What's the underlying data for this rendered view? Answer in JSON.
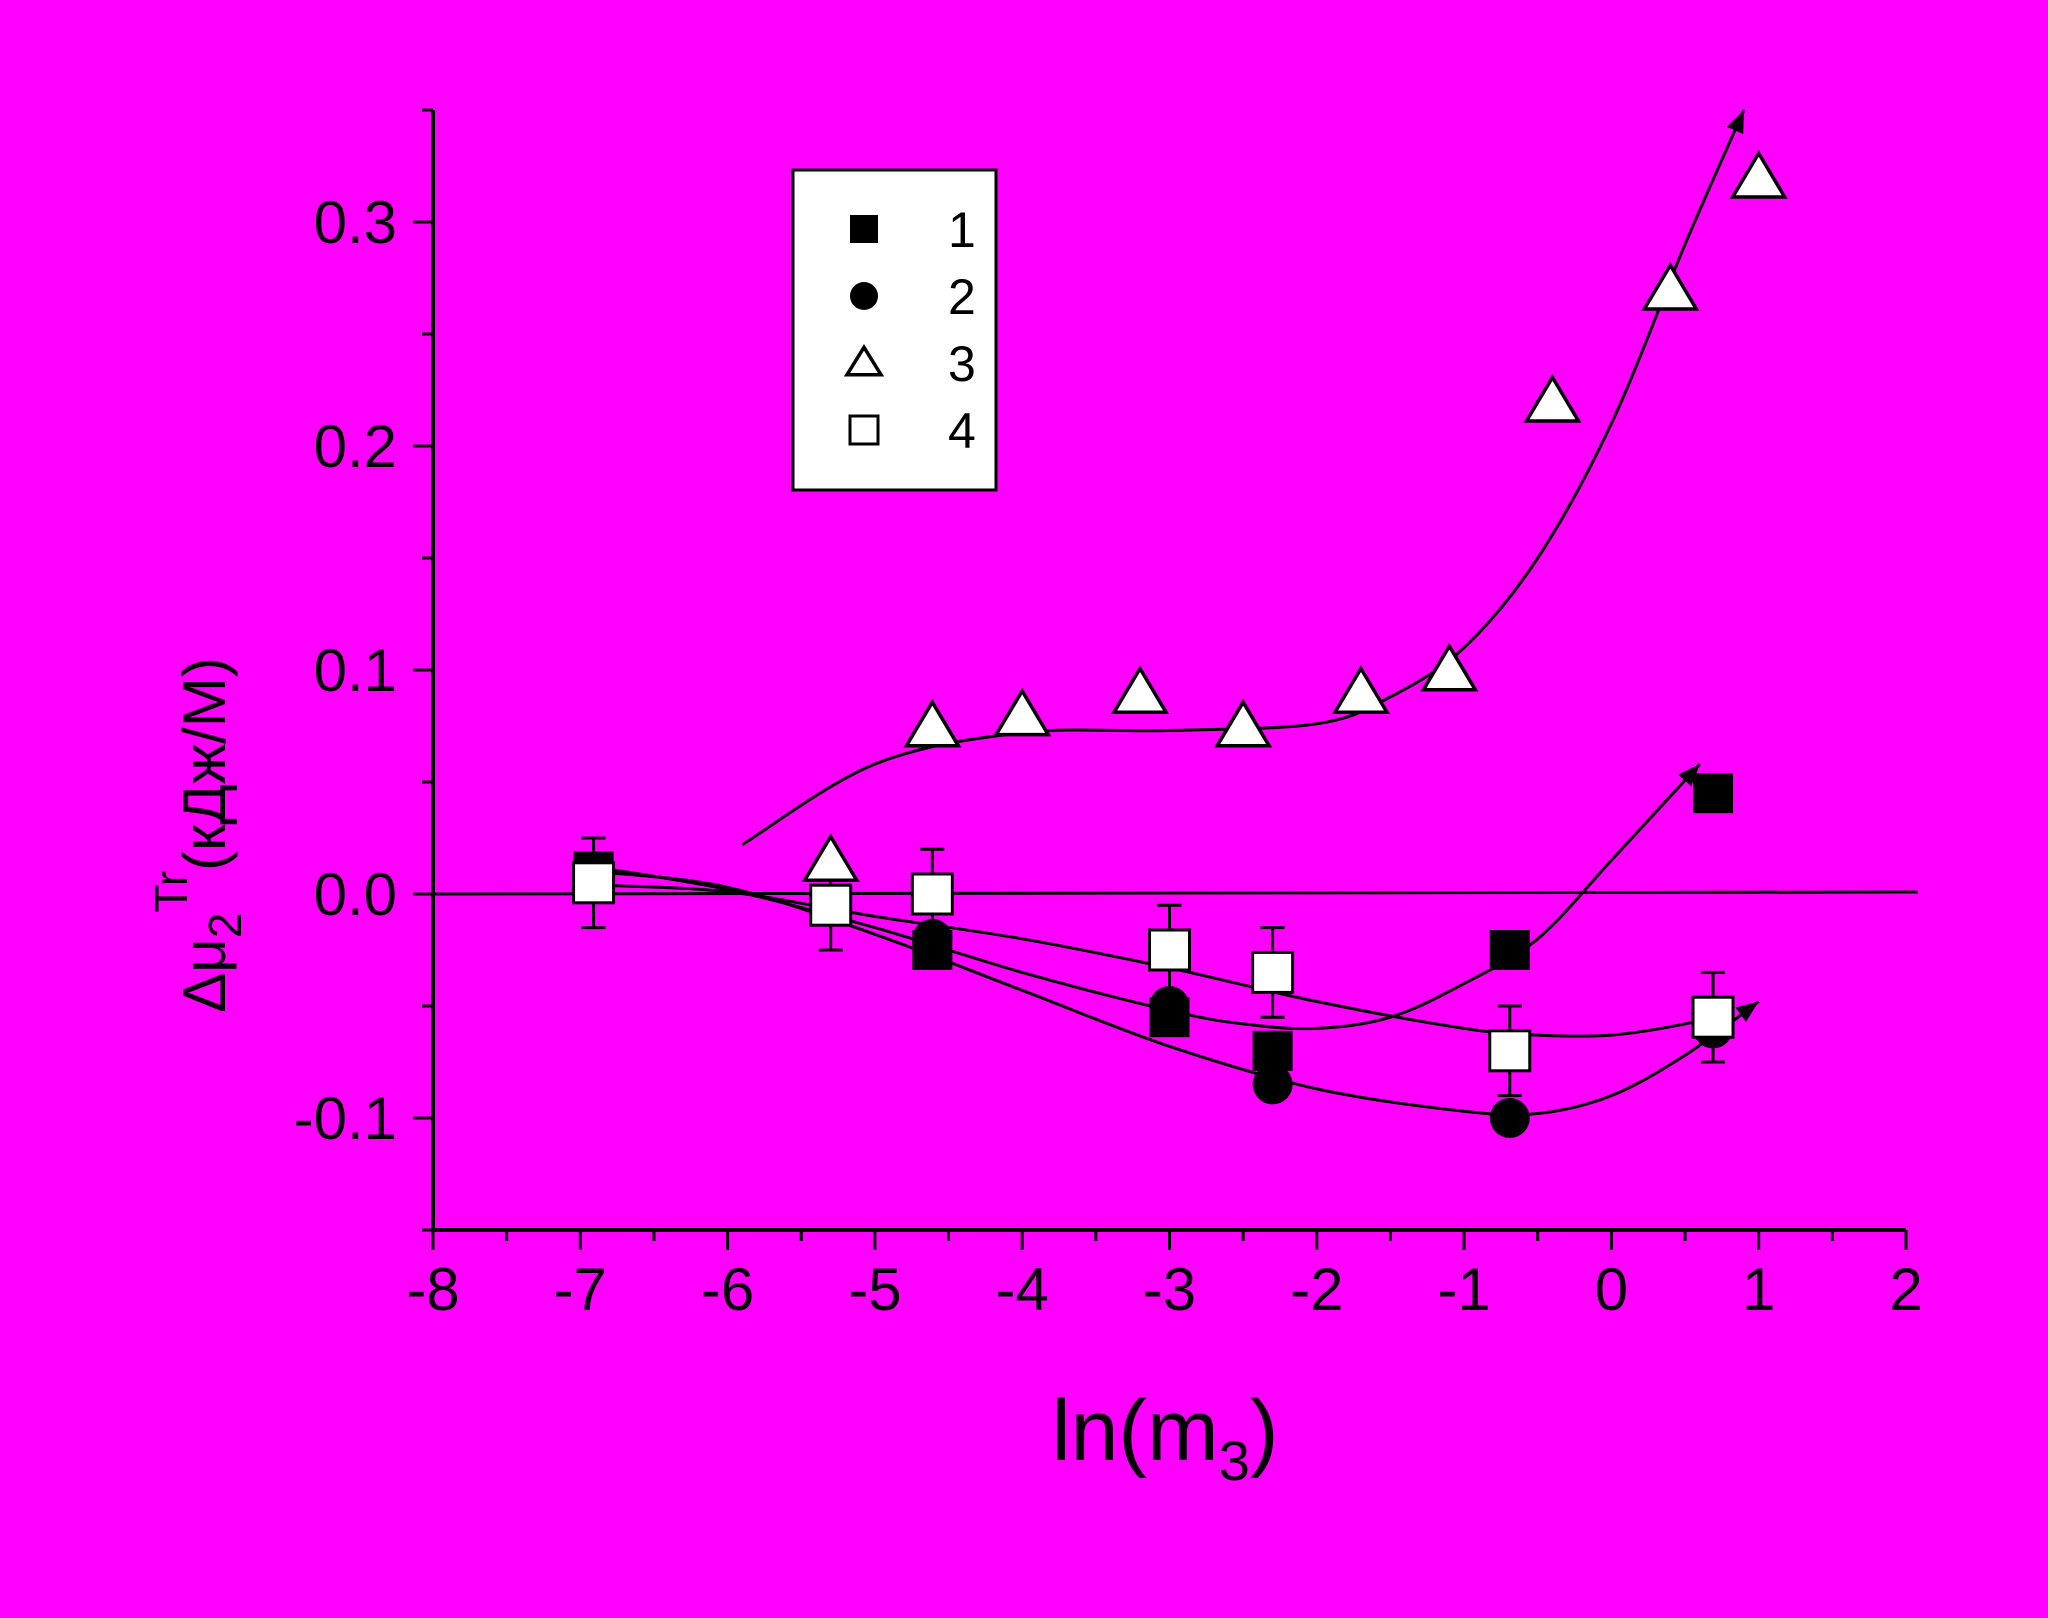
{
  "background": "#ff00ff",
  "chart_data": {
    "type": "scatter",
    "xlabel": {
      "main": "ln(m",
      "sub": "3",
      "close": ")"
    },
    "ylabel": {
      "main": "Δμ",
      "sub": "2",
      "sup": "Tr",
      "unit": "(кДж/М)"
    },
    "xlim": [
      -8,
      2
    ],
    "ylim": [
      -0.15,
      0.35
    ],
    "x_ticks": [
      -8,
      -7,
      -6,
      -5,
      -4,
      -3,
      -2,
      -1,
      0,
      1,
      2
    ],
    "x_tick_labels": [
      "-8",
      "-7",
      "-6",
      "-5",
      "-4",
      "-3",
      "-2",
      "-1",
      "0",
      "1",
      "2"
    ],
    "y_ticks": [
      -0.1,
      0.0,
      0.1,
      0.2,
      0.3
    ],
    "y_tick_labels": [
      "-0.1",
      "0.0",
      "0.1",
      "0.2",
      "0.3"
    ],
    "legend_position": "top-left",
    "series": [
      {
        "name": "1",
        "marker": "filled-square",
        "x": [
          -6.91,
          -5.3,
          -4.61,
          -3.0,
          -2.3,
          -0.69,
          0.69
        ],
        "y": [
          0.01,
          -0.005,
          -0.025,
          -0.055,
          -0.07,
          -0.025,
          0.045
        ],
        "fit_x": [
          -6.9,
          -6.0,
          -5.0,
          -4.0,
          -3.0,
          -2.5,
          -2.0,
          -1.5,
          -1.0,
          -0.5,
          0.0,
          0.6
        ],
        "fit_y": [
          0.012,
          0.002,
          -0.015,
          -0.035,
          -0.052,
          -0.058,
          -0.06,
          -0.055,
          -0.04,
          -0.02,
          0.015,
          0.058
        ]
      },
      {
        "name": "2",
        "marker": "filled-circle",
        "x": [
          -6.91,
          -5.3,
          -4.61,
          -3.0,
          -2.3,
          -0.69,
          0.69
        ],
        "y": [
          0.008,
          -0.005,
          -0.02,
          -0.05,
          -0.085,
          -0.1,
          -0.06
        ],
        "fit_x": [
          -6.9,
          -6.0,
          -5.0,
          -4.0,
          -3.0,
          -2.0,
          -1.0,
          -0.5,
          0.0,
          0.5,
          1.0
        ],
        "fit_y": [
          0.01,
          0.003,
          -0.018,
          -0.043,
          -0.068,
          -0.087,
          -0.097,
          -0.098,
          -0.09,
          -0.072,
          -0.048
        ]
      },
      {
        "name": "3",
        "marker": "open-triangle",
        "x": [
          -5.3,
          -4.61,
          -4.0,
          -3.2,
          -2.5,
          -1.7,
          -1.1,
          -0.4,
          0.4,
          1.0
        ],
        "y": [
          0.015,
          0.075,
          0.08,
          0.09,
          0.075,
          0.09,
          0.1,
          0.22,
          0.27,
          0.32
        ],
        "fit_x": [
          -5.9,
          -5.0,
          -4.0,
          -3.0,
          -2.0,
          -1.5,
          -1.0,
          -0.5,
          0.0,
          0.5,
          0.9
        ],
        "fit_y": [
          0.022,
          0.058,
          0.072,
          0.073,
          0.076,
          0.088,
          0.11,
          0.15,
          0.21,
          0.29,
          0.35
        ]
      },
      {
        "name": "4",
        "marker": "open-square",
        "x": [
          -6.91,
          -5.3,
          -4.61,
          -3.0,
          -2.3,
          -0.69,
          0.69
        ],
        "y": [
          0.005,
          -0.005,
          0.0,
          -0.025,
          -0.035,
          -0.07,
          -0.055
        ],
        "err": [
          0.02,
          0.02,
          0.02,
          0.02,
          0.02,
          0.02,
          0.02
        ],
        "fit_x": [
          -6.9,
          -6.0,
          -5.0,
          -4.0,
          -3.0,
          -2.0,
          -1.0,
          -0.5,
          0.0,
          0.5,
          0.7
        ],
        "fit_y": [
          0.004,
          0.001,
          -0.01,
          -0.02,
          -0.033,
          -0.048,
          -0.06,
          -0.063,
          -0.063,
          -0.058,
          -0.054
        ]
      }
    ],
    "reference_line": {
      "y": 0.0
    }
  }
}
